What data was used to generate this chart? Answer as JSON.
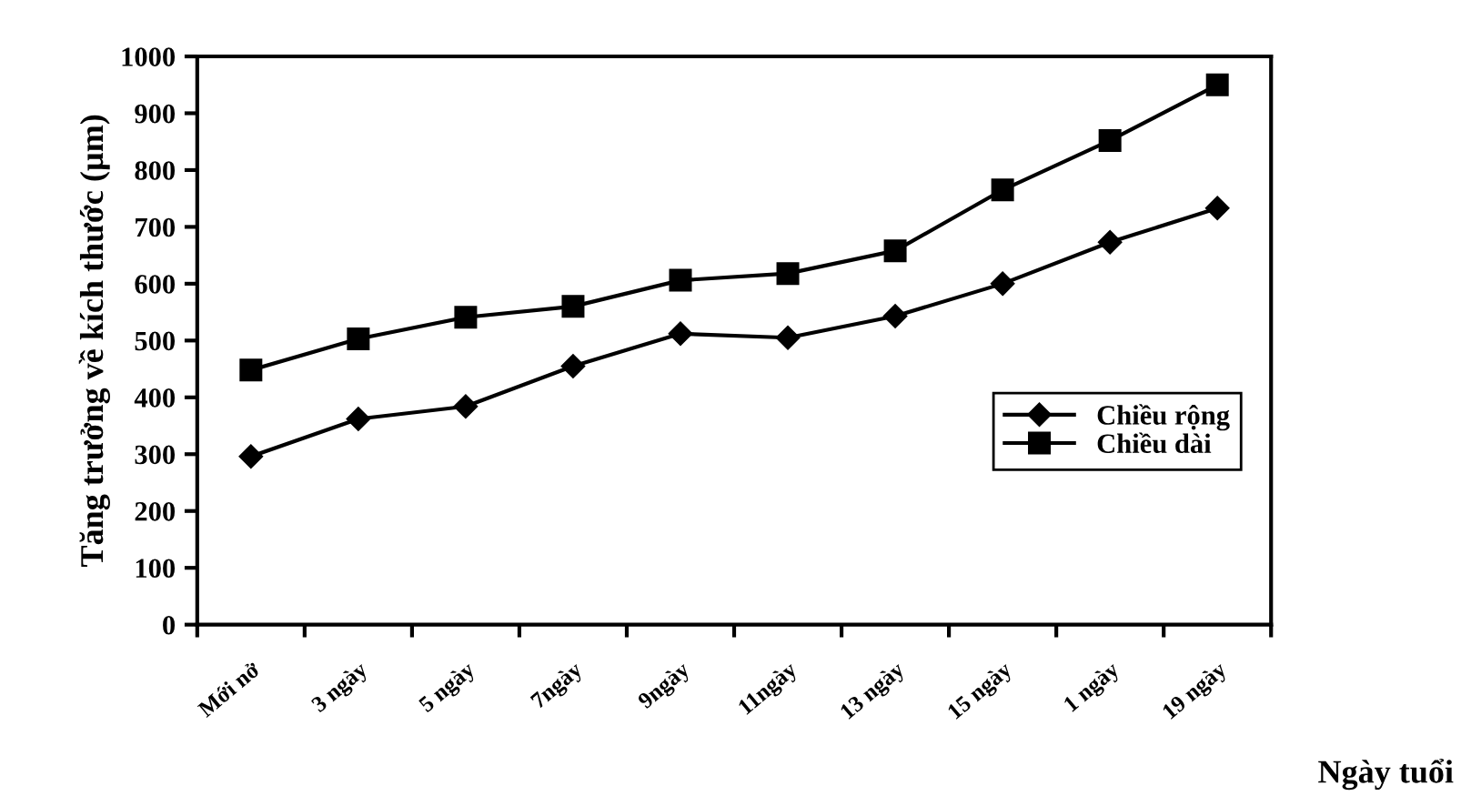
{
  "chart_data": {
    "type": "line",
    "xlabel": "Ngày tuổi",
    "ylabel": "Tăng trưởng về kích thước (µm)",
    "categories": [
      "Mới nở",
      "3 ngày",
      "5 ngày",
      "7ngày",
      "9ngày",
      "11ngày",
      "13 ngày",
      "15 ngày",
      "1 ngày",
      "19 ngày"
    ],
    "series": [
      {
        "name": "Chiều rộng",
        "color": "#000000",
        "marker": "diamond",
        "values": [
          296,
          362,
          384,
          455,
          512,
          505,
          543,
          600,
          673,
          733
        ]
      },
      {
        "name": "Chiều dài",
        "color": "#000000",
        "marker": "square",
        "values": [
          448,
          503,
          541,
          560,
          606,
          618,
          658,
          765,
          852,
          950
        ]
      }
    ],
    "ylim": [
      0,
      1000
    ],
    "yticks": [
      0,
      100,
      200,
      300,
      400,
      500,
      600,
      700,
      800,
      900,
      1000
    ],
    "grid": false,
    "legend": "right",
    "line_style": "solid"
  }
}
